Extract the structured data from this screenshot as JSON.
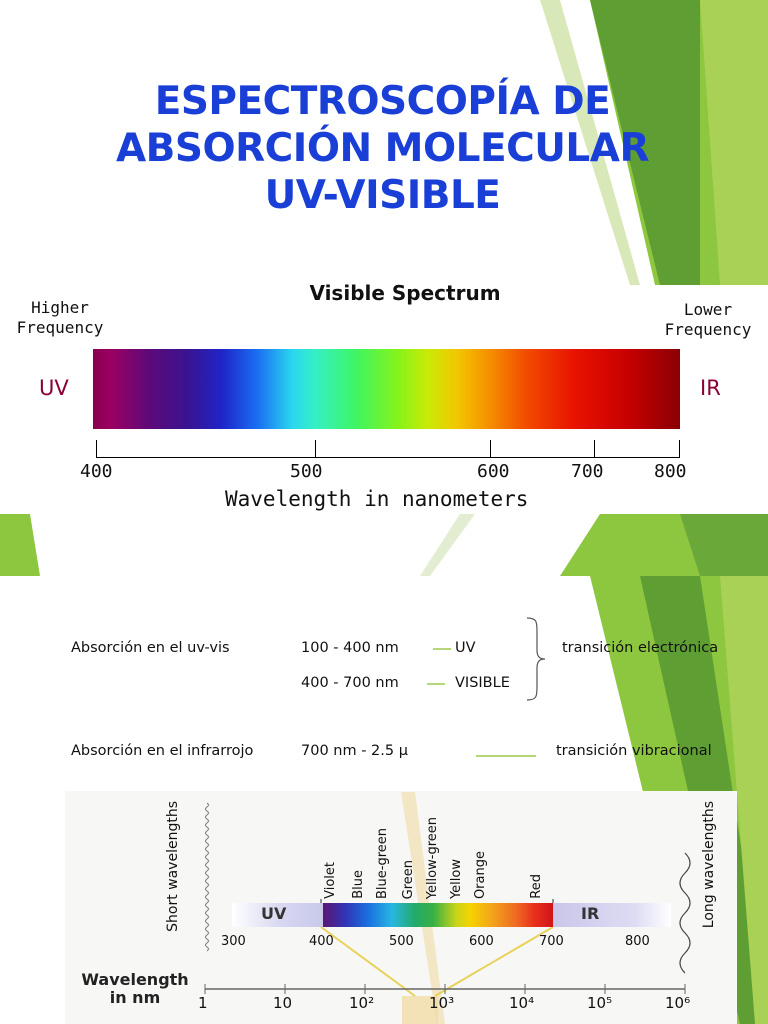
{
  "slide1": {
    "title_lines": [
      "ESPECTROSCOPÍA DE",
      "ABSORCIÓN MOLECULAR",
      "UV-VISIBLE"
    ],
    "spectrum_title": "Visible Spectrum",
    "higher_frequency": [
      "Higher",
      "Frequency"
    ],
    "lower_frequency": [
      "Lower",
      "Frequency"
    ],
    "uv": "UV",
    "ir": "IR",
    "ticks": [
      "400",
      "500",
      "600",
      "700",
      "800"
    ],
    "axis_title": "Wavelength in nanometers"
  },
  "slide2": {
    "row1": {
      "label": "Absorción en el uv-vis",
      "range": "100 -  400 nm",
      "type": "UV"
    },
    "row2": {
      "range": "400 - 700 nm",
      "type": "VISIBLE"
    },
    "brace_text": "transición electrónica",
    "row3": {
      "label": "Absorción en el infrarrojo",
      "range": "700 nm - 2.5 μ",
      "text": "transición vibracional"
    },
    "colors": {
      "dash": "#b6d67a",
      "accent": "#8dc63f"
    }
  },
  "figure": {
    "short": "Short wavelengths",
    "long": "Long wavelengths",
    "colors": [
      "Violet",
      "Blue",
      "Blue-green",
      "Green",
      "Yellow-green",
      "Yellow",
      "Orange",
      "Red"
    ],
    "uv": "UV",
    "ir": "IR",
    "scale_top": [
      "300",
      "400",
      "500",
      "600",
      "700",
      "800"
    ],
    "wavelength_label": [
      "Wavelength",
      "in nm"
    ],
    "scale_bottom": [
      "1",
      "10",
      "10²",
      "10³",
      "10⁴",
      "10⁵",
      "10⁶"
    ]
  }
}
